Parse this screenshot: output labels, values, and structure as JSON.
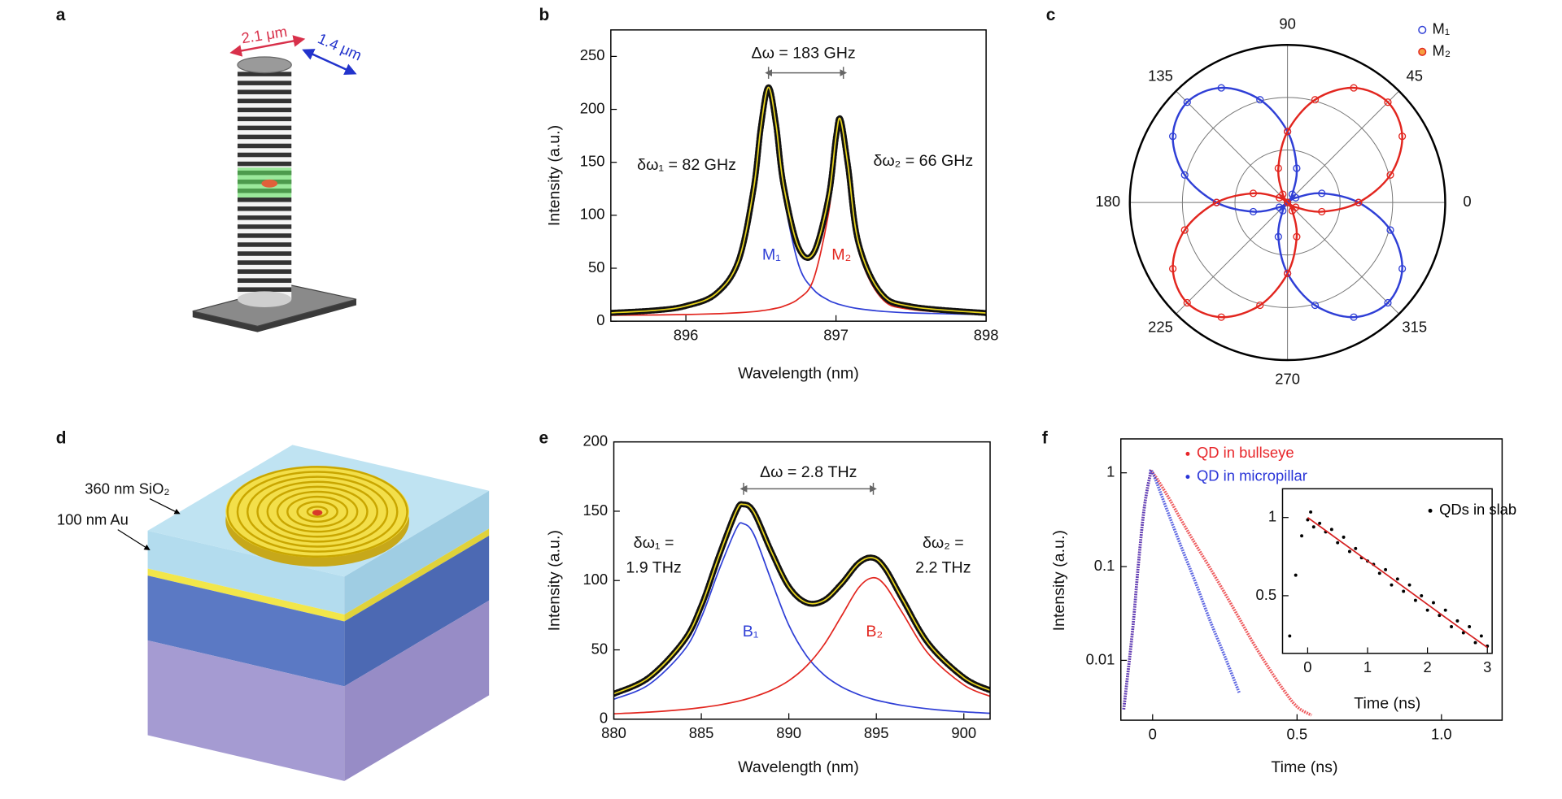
{
  "panel_labels": [
    "a",
    "b",
    "c",
    "d",
    "e",
    "f"
  ],
  "illustrations": {
    "a": {
      "diameter_label": "2.1 μm",
      "depth_label": "1.4 μm"
    },
    "d": {
      "oxide_label": "360 nm SiO₂",
      "metal_label": "100 nm Au"
    }
  },
  "chart_data": [
    {
      "type": "line",
      "xlabel": "Wavelength (nm)",
      "ylabel": "Intensity (a.u.)",
      "x": [
        895.5,
        895.8,
        896.0,
        896.2,
        896.35,
        896.45,
        896.5,
        896.55,
        896.6,
        896.65,
        896.75,
        896.85,
        896.95,
        897.0,
        897.03,
        897.08,
        897.15,
        897.3,
        897.5,
        898.0
      ],
      "series": [
        {
          "name": "M₁",
          "color": "#2f3fd6",
          "values": [
            7.3,
            9.4,
            13.1,
            23.9,
            53.7,
            120,
            179,
            215,
            179,
            120,
            53.7,
            29.9,
            19.8,
            16.9,
            15.5,
            13.7,
            11.8,
            9.4,
            7.8,
            6.2
          ]
        },
        {
          "name": "M₂",
          "color": "#e2261f",
          "values": [
            5.6,
            5.9,
            6.3,
            7.0,
            8.0,
            9.0,
            9.8,
            10.8,
            12.2,
            14.1,
            21.1,
            39.4,
            101.8,
            162,
            180,
            138,
            67,
            22.2,
            11.1,
            6.5
          ]
        },
        {
          "color": "#e8d51e",
          "edgecolor": "#111111",
          "values": [
            7.9,
            10.3,
            14.4,
            25.9,
            56.7,
            124,
            183.8,
            220.8,
            186.2,
            129.1,
            69.8,
            64.3,
            116.6,
            173.9,
            190.5,
            146.7,
            73.8,
            26.6,
            13.9,
            7.7
          ]
        }
      ],
      "xlim": [
        895.5,
        898
      ],
      "ylim": [
        0,
        275
      ],
      "xticks": [
        896,
        897,
        898
      ],
      "yticks": [
        0,
        50,
        100,
        150,
        200,
        250
      ],
      "annotations": {
        "delta": "Δω = 183 GHz",
        "width_1": "δω₁ = 82 GHz",
        "width_2": "δω₂ = 66 GHz"
      }
    },
    {
      "type": "polar",
      "theta": [
        0,
        15,
        30,
        45,
        60,
        75,
        90,
        105,
        120,
        135,
        150,
        165,
        180,
        195,
        210,
        225,
        240,
        255,
        270,
        285,
        300,
        315,
        330,
        345
      ],
      "series": [
        {
          "name": "M₁",
          "color": "#2f3fd6",
          "values": [
            0.45,
            0.225,
            0.06,
            0,
            0.06,
            0.225,
            0.45,
            0.675,
            0.84,
            0.9,
            0.84,
            0.675,
            0.45,
            0.225,
            0.06,
            0,
            0.06,
            0.225,
            0.45,
            0.675,
            0.84,
            0.9,
            0.84,
            0.675
          ]
        },
        {
          "name": "M₂",
          "color": "#e2261f",
          "values": [
            0.45,
            0.675,
            0.84,
            0.9,
            0.84,
            0.675,
            0.45,
            0.225,
            0.06,
            0,
            0.06,
            0.225,
            0.45,
            0.675,
            0.84,
            0.9,
            0.84,
            0.675,
            0.45,
            0.225,
            0.06,
            0,
            0.06,
            0.225
          ]
        }
      ],
      "rlim": [
        0,
        1
      ],
      "thetaticks": [
        0,
        45,
        90,
        135,
        180,
        225,
        270,
        315
      ],
      "legend": "upper right"
    },
    {
      "type": "line",
      "xlabel": "Wavelength (nm)",
      "ylabel": "Intensity (a.u.)",
      "x": [
        880,
        882,
        884,
        885,
        886,
        887,
        887.4,
        888,
        889,
        890,
        891,
        892,
        893,
        894,
        894.8,
        895.5,
        896.5,
        898,
        900,
        901.5
      ],
      "series": [
        {
          "name": "B₁",
          "color": "#2f3fd6",
          "values": [
            14.4,
            24.9,
            49.5,
            73.4,
            107.3,
            137.5,
            141,
            133.3,
            100,
            67.8,
            45.9,
            32.1,
            23.4,
            17.7,
            14.4,
            12.3,
            9.9,
            7.4,
            5.3,
            4.3
          ]
        },
        {
          "name": "B₂",
          "color": "#e2261f",
          "values": [
            3.9,
            5.1,
            7.0,
            8.4,
            10.2,
            12.7,
            13.9,
            16.1,
            20.9,
            27.8,
            38.2,
            53.5,
            74.2,
            95,
            102,
            96.5,
            76.5,
            46.8,
            24.7,
            16.5
          ]
        },
        {
          "color": "#e8d51e",
          "edgecolor": "#111111",
          "values": [
            18.3,
            30,
            56.5,
            81.8,
            117.5,
            150.2,
            154.9,
            149.4,
            120.9,
            95.6,
            84.1,
            85.6,
            97.6,
            112.7,
            116.4,
            108.8,
            86.4,
            54.2,
            30,
            20.8
          ]
        }
      ],
      "xlim": [
        880,
        901.5
      ],
      "ylim": [
        0,
        200
      ],
      "xticks": [
        880,
        885,
        890,
        895,
        900
      ],
      "yticks": [
        0,
        50,
        100,
        150,
        200
      ],
      "annotations": {
        "delta": "Δω = 2.8 THz",
        "width_1": [
          "δω₁ =",
          "1.9 THz"
        ],
        "width_2": [
          "δω₂ =",
          "2.2 THz"
        ]
      }
    },
    {
      "type": "line",
      "xlabel": "Time (ns)",
      "ylabel": "Intensity (a.u.)",
      "log_y": true,
      "x": [
        -0.1,
        -0.07,
        -0.05,
        -0.03,
        -0.01,
        0,
        0.05,
        0.1,
        0.15,
        0.2,
        0.25,
        0.3,
        0.35,
        0.4,
        0.45,
        0.5,
        0.55
      ],
      "series": [
        {
          "name": "QD in bullseye",
          "color": "#e8262a",
          "values": [
            0.003,
            0.02,
            0.1,
            0.4,
            0.9,
            1,
            0.58,
            0.31,
            0.17,
            0.095,
            0.052,
            0.028,
            0.015,
            0.0085,
            0.005,
            0.0032,
            0.0026
          ]
        },
        {
          "name": "QD in micropillar",
          "color": "#2a35d8",
          "values": [
            0.003,
            0.02,
            0.1,
            0.4,
            0.9,
            1,
            0.4,
            0.16,
            0.066,
            0.026,
            0.011,
            0.0045,
            null,
            null,
            null,
            null,
            null
          ]
        }
      ],
      "xlim": [
        -0.11,
        1.21
      ],
      "ylim": [
        0.0023,
        2.3
      ],
      "xticks": [
        0,
        0.5,
        {
          "value": 1,
          "label": "1.0"
        }
      ],
      "yticks": [
        0.01,
        0.1,
        1
      ],
      "legend": "upper center"
    },
    {
      "type": "scatter",
      "xlabel": "Time (ns)",
      "log_y": true,
      "series": [
        {
          "name": "QDs in slab",
          "color": "#000000",
          "mode": "markers",
          "x": [
            -0.3,
            -0.2,
            -0.1,
            0,
            0.05,
            0.1,
            0.2,
            0.3,
            0.4,
            0.5,
            0.6,
            0.7,
            0.8,
            0.9,
            1.0,
            1.1,
            1.2,
            1.3,
            1.4,
            1.5,
            1.6,
            1.7,
            1.8,
            1.9,
            2.0,
            2.1,
            2.2,
            2.3,
            2.4,
            2.5,
            2.6,
            2.7,
            2.8,
            2.9,
            3.0
          ],
          "values": [
            0.35,
            0.6,
            0.85,
            0.98,
            1.05,
            0.92,
            0.95,
            0.88,
            0.9,
            0.8,
            0.84,
            0.74,
            0.76,
            0.7,
            0.68,
            0.66,
            0.61,
            0.63,
            0.55,
            0.58,
            0.52,
            0.55,
            0.48,
            0.5,
            0.44,
            0.47,
            0.42,
            0.44,
            0.38,
            0.4,
            0.36,
            0.38,
            0.33,
            0.35,
            0.32
          ]
        },
        {
          "color": "#d42020",
          "mode": "line",
          "x": [
            0,
            0.5,
            1,
            1.5,
            2,
            2.5,
            3
          ],
          "values": [
            1,
            0.825,
            0.681,
            0.562,
            0.463,
            0.382,
            0.316
          ]
        }
      ],
      "xlim": [
        -0.42,
        3.08
      ],
      "ylim": [
        0.3,
        1.29
      ],
      "xticks": [
        0,
        1,
        2,
        3
      ],
      "yticks": [
        0.5,
        1
      ],
      "legend": "upper right"
    }
  ]
}
